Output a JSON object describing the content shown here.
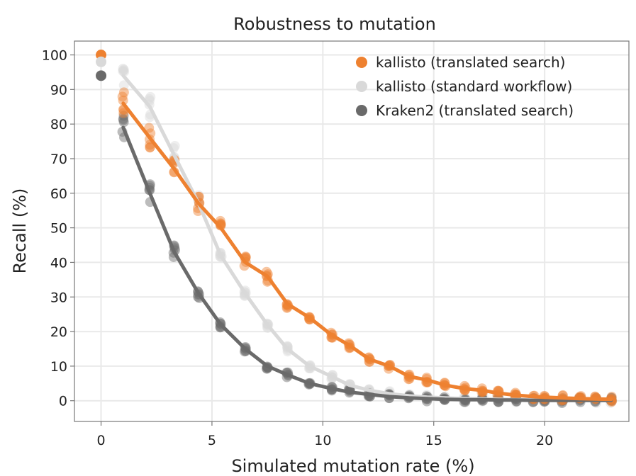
{
  "chart_data": {
    "type": "scatter",
    "title": "Robustness to mutation",
    "xlabel": "Simulated mutation rate (%)",
    "ylabel": "Recall (%)",
    "xlim": [
      -1.2,
      23.8
    ],
    "ylim": [
      -6,
      104
    ],
    "xticks": [
      0,
      5,
      10,
      15,
      20
    ],
    "yticks": [
      0,
      10,
      20,
      30,
      40,
      50,
      60,
      70,
      80,
      90,
      100
    ],
    "grid": true,
    "legend_position": "top-right",
    "series": [
      {
        "name": "kallisto (translated search)",
        "color": "#EE8130",
        "point0": [
          0,
          100
        ],
        "fit": true,
        "x": [
          1.0,
          2.2,
          3.3,
          4.4,
          5.4,
          6.5,
          7.5,
          8.4,
          9.4,
          10.4,
          11.2,
          12.1,
          13.0,
          13.9,
          14.7,
          15.5,
          16.4,
          17.2,
          17.9,
          18.7,
          19.5,
          20.0,
          20.8,
          21.6,
          22.3,
          23.0
        ],
        "y": [
          86,
          76,
          67,
          57,
          50,
          40,
          36,
          28,
          24,
          19,
          16,
          12,
          10,
          7,
          6,
          4.5,
          3.5,
          3,
          2.2,
          1.6,
          1.2,
          1,
          0.8,
          0.6,
          0.5,
          0.4
        ]
      },
      {
        "name": "kallisto (standard workflow)",
        "color": "#D9D9D9",
        "point0": [
          0,
          98
        ],
        "fit": true,
        "x": [
          1.0,
          2.2,
          3.3,
          4.4,
          5.4,
          6.5,
          7.5,
          8.4,
          9.4,
          10.4,
          11.2,
          12.1,
          13.0,
          13.9,
          14.7,
          15.5,
          16.4,
          17.2,
          17.9,
          18.7,
          19.5,
          20.0,
          20.8,
          21.6,
          22.3,
          23.0
        ],
        "y": [
          94,
          85,
          71,
          57,
          42,
          31,
          22,
          15,
          10,
          7,
          4.5,
          3,
          2,
          1.4,
          1,
          0.8,
          0.6,
          0.5,
          0.4,
          0.3,
          0.3,
          0.2,
          0.2,
          0.2,
          0.1,
          0.1
        ]
      },
      {
        "name": "Kraken2 (translated search)",
        "color": "#6A6A6A",
        "point0": [
          0,
          94
        ],
        "fit": true,
        "x": [
          1.0,
          2.2,
          3.3,
          4.4,
          5.4,
          6.5,
          7.5,
          8.4,
          9.4,
          10.4,
          11.2,
          12.1,
          13.0,
          13.9,
          14.7,
          15.5,
          16.4,
          17.2,
          17.9,
          18.7,
          19.5,
          20.0,
          20.8,
          21.6,
          22.3,
          23.0
        ],
        "y": [
          79,
          60,
          43,
          31,
          22,
          15,
          10,
          7.5,
          5,
          3.5,
          2.5,
          1.8,
          1.2,
          0.8,
          0.6,
          0.4,
          0.3,
          0.3,
          0.2,
          0.2,
          0.1,
          0.1,
          0.1,
          0.1,
          0.1,
          0.1
        ]
      }
    ]
  }
}
